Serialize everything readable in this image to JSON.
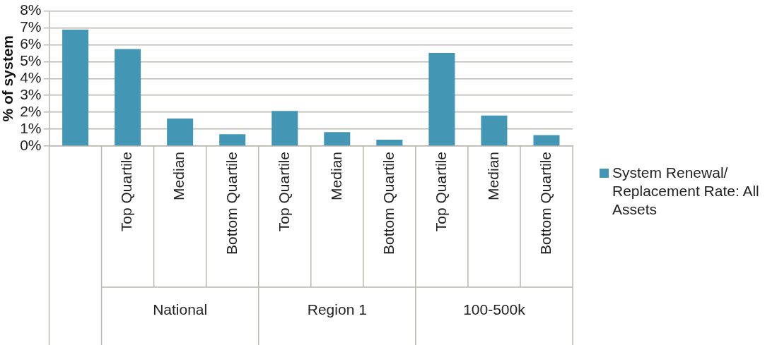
{
  "chart_data": {
    "type": "bar",
    "ylabel": "% of system",
    "categories": [
      null,
      "Top Quartile",
      "Median",
      "Bottom Quartile",
      "Top Quartile",
      "Median",
      "Bottom Quartile",
      "Top Quartile",
      "Median",
      "Bottom Quartile"
    ],
    "series": [
      {
        "name": "System Renewal/ Replacement Rate: All Assets",
        "color": "#4397b5",
        "values": [
          6.9,
          5.75,
          1.63,
          0.7,
          2.08,
          0.83,
          0.38,
          5.52,
          1.81,
          0.65
        ]
      }
    ],
    "annotations": [
      "National",
      "Region 1",
      "100-500k"
    ],
    "ylim": [
      0,
      8
    ],
    "yticks": [
      {
        "value": 0,
        "label": "0%"
      },
      {
        "value": 1,
        "label": "1%"
      },
      {
        "value": 2,
        "label": "2%"
      },
      {
        "value": 3,
        "label": "3%"
      },
      {
        "value": 4,
        "label": "4%"
      },
      {
        "value": 5,
        "label": "5%"
      },
      {
        "value": 6,
        "label": "6%"
      },
      {
        "value": 7,
        "label": "7%"
      },
      {
        "value": 8,
        "label": "8%"
      }
    ],
    "grid": "y",
    "legend": "right"
  }
}
